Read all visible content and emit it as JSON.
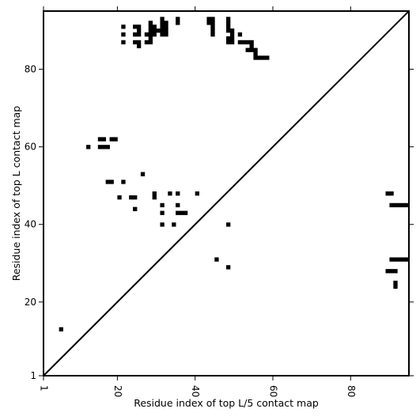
{
  "chart_data": {
    "type": "heatmap",
    "xlabel": "Residue index of top L/5 contact map",
    "ylabel": "Residue index of top L contact map",
    "xlim": [
      1,
      95
    ],
    "ylim": [
      1,
      95
    ],
    "x_ticks": [
      1,
      20,
      40,
      60,
      80
    ],
    "y_ticks": [
      1,
      20,
      40,
      60,
      80
    ],
    "diagonal": true,
    "colors": {
      "cell": "#000000",
      "background": "#ffffff",
      "diagonal": "#000000"
    },
    "cells": [
      [
        5.5,
        13
      ],
      [
        12.5,
        60
      ],
      [
        15.5,
        62
      ],
      [
        16.5,
        62
      ],
      [
        15.5,
        60
      ],
      [
        16.5,
        60
      ],
      [
        17.5,
        60
      ],
      [
        18.5,
        62
      ],
      [
        19.5,
        62
      ],
      [
        17.5,
        51
      ],
      [
        18.5,
        51
      ],
      [
        21.5,
        51
      ],
      [
        20.5,
        47
      ],
      [
        23.5,
        47
      ],
      [
        24.5,
        47
      ],
      [
        24.5,
        44
      ],
      [
        26.5,
        53
      ],
      [
        29.5,
        48
      ],
      [
        29.5,
        47
      ],
      [
        31.5,
        45
      ],
      [
        31.5,
        43
      ],
      [
        31.5,
        40
      ],
      [
        33.5,
        48
      ],
      [
        34.5,
        40
      ],
      [
        35.5,
        48
      ],
      [
        35.5,
        45
      ],
      [
        35.5,
        43
      ],
      [
        36.5,
        43
      ],
      [
        37.5,
        43
      ],
      [
        40.5,
        48
      ],
      [
        45.5,
        31
      ],
      [
        48.5,
        40
      ],
      [
        48.5,
        29
      ],
      [
        21.5,
        91
      ],
      [
        21.5,
        89
      ],
      [
        21.5,
        87
      ],
      [
        24.5,
        91
      ],
      [
        25.5,
        91
      ],
      [
        25.5,
        90
      ],
      [
        24.5,
        89
      ],
      [
        25.5,
        89
      ],
      [
        24.5,
        87
      ],
      [
        25.5,
        87
      ],
      [
        25.5,
        86
      ],
      [
        28.5,
        92
      ],
      [
        28.5,
        91
      ],
      [
        29.5,
        91
      ],
      [
        28.5,
        90
      ],
      [
        29.5,
        90
      ],
      [
        30.5,
        90
      ],
      [
        27.5,
        89
      ],
      [
        28.5,
        89
      ],
      [
        29.5,
        89
      ],
      [
        28.5,
        88
      ],
      [
        27.5,
        87
      ],
      [
        28.5,
        87
      ],
      [
        31.5,
        93
      ],
      [
        31.5,
        92
      ],
      [
        32.5,
        92
      ],
      [
        31.5,
        91
      ],
      [
        32.5,
        91
      ],
      [
        31.5,
        90
      ],
      [
        32.5,
        90
      ],
      [
        31.5,
        89
      ],
      [
        32.5,
        89
      ],
      [
        35.5,
        93
      ],
      [
        35.5,
        92
      ],
      [
        43.5,
        93
      ],
      [
        44.5,
        93
      ],
      [
        43.5,
        92
      ],
      [
        44.5,
        92
      ],
      [
        44.5,
        91
      ],
      [
        44.5,
        90
      ],
      [
        44.5,
        89
      ],
      [
        48.5,
        93
      ],
      [
        48.5,
        92
      ],
      [
        48.5,
        91
      ],
      [
        48.5,
        90
      ],
      [
        49.5,
        90
      ],
      [
        49.5,
        89
      ],
      [
        51.5,
        89
      ],
      [
        48.5,
        88
      ],
      [
        49.5,
        88
      ],
      [
        48.5,
        87
      ],
      [
        49.5,
        87
      ],
      [
        51.5,
        87
      ],
      [
        52.5,
        87
      ],
      [
        53.5,
        87
      ],
      [
        54.5,
        87
      ],
      [
        54.5,
        86
      ],
      [
        53.5,
        85
      ],
      [
        54.5,
        85
      ],
      [
        55.5,
        85
      ],
      [
        55.5,
        84
      ],
      [
        55.5,
        83
      ],
      [
        56.5,
        83
      ],
      [
        57.5,
        83
      ],
      [
        58.5,
        83
      ],
      [
        89.5,
        48
      ],
      [
        90.5,
        48
      ],
      [
        90.5,
        45
      ],
      [
        91.5,
        45
      ],
      [
        92.5,
        45
      ],
      [
        93.5,
        45
      ],
      [
        94.5,
        45
      ],
      [
        90.5,
        31
      ],
      [
        91.5,
        31
      ],
      [
        92.5,
        31
      ],
      [
        93.5,
        31
      ],
      [
        94.5,
        31
      ],
      [
        89.5,
        28
      ],
      [
        90.5,
        28
      ],
      [
        91.5,
        28
      ],
      [
        91.5,
        25
      ],
      [
        91.5,
        24
      ]
    ]
  }
}
